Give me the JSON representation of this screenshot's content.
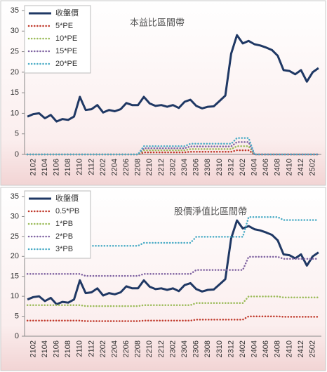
{
  "chart_data": [
    {
      "type": "line",
      "title": "本益比區間帶",
      "categories": [
        null,
        "2102",
        null,
        "2104",
        null,
        "2106",
        null,
        "2108",
        null,
        "2110",
        null,
        "2112",
        null,
        "2202",
        null,
        "2204",
        null,
        "2206",
        null,
        "2208",
        null,
        "2210",
        null,
        "2212",
        null,
        "2302",
        null,
        "2304",
        null,
        "2306",
        null,
        "2308",
        null,
        "2310",
        null,
        "2312",
        null,
        "2402",
        null,
        "2404",
        null,
        "2406",
        null,
        "2408",
        null,
        "2410",
        null,
        "2412",
        null,
        "2502",
        null
      ],
      "ylim": [
        0,
        35
      ],
      "yticks": [
        0,
        5,
        10,
        15,
        20,
        25,
        30,
        35
      ],
      "legend": "upper-left",
      "series": [
        {
          "name": "收盤價",
          "color": "#1f3864",
          "line_style": "solid",
          "values": [
            9.2,
            9.8,
            10,
            8.8,
            9.6,
            8.0,
            8.6,
            8.4,
            9.2,
            14.0,
            10.8,
            11.0,
            12.0,
            10.2,
            10.8,
            10.5,
            11.0,
            12.5,
            12.0,
            12.0,
            14.0,
            12.4,
            11.8,
            12.0,
            11.6,
            12.0,
            11.3,
            12.8,
            13.3,
            11.8,
            11.2,
            11.6,
            11.7,
            13.0,
            14.3,
            24.5,
            29.0,
            27.0,
            27.6,
            26.8,
            26.5,
            26.0,
            25.4,
            24.0,
            20.5,
            20.3,
            19.5,
            20.5,
            17.7,
            20.0,
            21.0
          ]
        },
        {
          "name": "5*PE",
          "color": "#c0392b",
          "line_style": "dotted",
          "values": [
            0,
            0,
            0,
            0,
            0,
            0,
            0,
            0,
            0,
            0,
            0,
            0,
            0,
            0,
            0,
            0,
            0,
            0,
            0,
            0,
            0.5,
            0.5,
            0.5,
            0.5,
            0.5,
            0.5,
            0.5,
            0.5,
            0.65,
            0.65,
            0.65,
            0.65,
            0.65,
            0.65,
            0.65,
            0.65,
            1,
            1,
            1,
            0,
            0,
            0,
            0,
            0,
            0,
            0,
            0,
            0,
            0,
            0,
            0
          ]
        },
        {
          "name": "10*PE",
          "color": "#9bbb59",
          "line_style": "dotted",
          "values": [
            0,
            0,
            0,
            0,
            0,
            0,
            0,
            0,
            0,
            0,
            0,
            0,
            0,
            0,
            0,
            0,
            0,
            0,
            0,
            0,
            1,
            1,
            1,
            1,
            1,
            1,
            1,
            1,
            1.3,
            1.3,
            1.3,
            1.3,
            1.3,
            1.3,
            1.3,
            1.3,
            2,
            2,
            2,
            0,
            0,
            0,
            0,
            0,
            0,
            0,
            0,
            0,
            0,
            0,
            0
          ]
        },
        {
          "name": "15*PE",
          "color": "#8064a2",
          "line_style": "dotted",
          "values": [
            0,
            0,
            0,
            0,
            0,
            0,
            0,
            0,
            0,
            0,
            0,
            0,
            0,
            0,
            0,
            0,
            0,
            0,
            0,
            0,
            1.5,
            1.5,
            1.5,
            1.5,
            1.5,
            1.5,
            1.5,
            1.5,
            1.95,
            1.95,
            1.95,
            1.95,
            1.95,
            1.95,
            1.95,
            1.95,
            3,
            3,
            3,
            0,
            0,
            0,
            0,
            0,
            0,
            0,
            0,
            0,
            0,
            0,
            0
          ]
        },
        {
          "name": "20*PE",
          "color": "#4bacc6",
          "line_style": "dotted",
          "values": [
            0,
            0,
            0,
            0,
            0,
            0,
            0,
            0,
            0,
            0,
            0,
            0,
            0,
            0,
            0,
            0,
            0,
            0,
            0,
            0,
            2,
            2,
            2,
            2,
            2,
            2,
            2,
            2,
            2.6,
            2.6,
            2.6,
            2.6,
            2.6,
            2.6,
            2.6,
            2.6,
            4,
            4,
            4,
            0,
            0,
            0,
            0,
            0,
            0,
            0,
            0,
            0,
            0,
            0,
            0
          ]
        }
      ]
    },
    {
      "type": "line",
      "title": "股價淨值比區間帶",
      "categories": [
        null,
        "2102",
        null,
        "2104",
        null,
        "2106",
        null,
        "2108",
        null,
        "2110",
        null,
        "2112",
        null,
        "2202",
        null,
        "2204",
        null,
        "2206",
        null,
        "2208",
        null,
        "2210",
        null,
        "2212",
        null,
        "2302",
        null,
        "2304",
        null,
        "2306",
        null,
        "2308",
        null,
        "2310",
        null,
        "2312",
        null,
        "2402",
        null,
        "2404",
        null,
        "2406",
        null,
        "2408",
        null,
        "2410",
        null,
        "2412",
        null,
        "2502",
        null
      ],
      "ylim": [
        0,
        35
      ],
      "yticks": [
        0,
        5,
        10,
        15,
        20,
        25,
        30,
        35
      ],
      "legend": "upper-left",
      "series": [
        {
          "name": "收盤價",
          "color": "#1f3864",
          "line_style": "solid",
          "values": [
            9.2,
            9.8,
            10,
            8.8,
            9.6,
            8.0,
            8.6,
            8.4,
            9.2,
            14.0,
            10.8,
            11.0,
            12.0,
            10.2,
            10.8,
            10.5,
            11.0,
            12.5,
            12.0,
            12.0,
            14.0,
            12.4,
            11.8,
            12.0,
            11.6,
            12.0,
            11.3,
            12.8,
            13.3,
            11.8,
            11.2,
            11.6,
            11.7,
            13.0,
            14.3,
            24.5,
            29.0,
            27.0,
            27.6,
            26.8,
            26.5,
            26.0,
            25.4,
            24.0,
            20.5,
            20.3,
            19.5,
            20.5,
            17.7,
            20.0,
            21.0
          ]
        },
        {
          "name": "0.5*PB",
          "color": "#c0392b",
          "line_style": "dotted",
          "values": [
            3.9,
            3.9,
            3.9,
            3.9,
            3.9,
            3.9,
            3.9,
            3.9,
            3.9,
            3.9,
            3.78,
            3.78,
            3.78,
            3.78,
            3.78,
            3.78,
            3.78,
            3.78,
            3.78,
            3.78,
            3.9,
            3.9,
            3.9,
            3.9,
            3.9,
            3.9,
            3.9,
            3.9,
            3.9,
            4.15,
            4.15,
            4.15,
            4.15,
            4.15,
            4.15,
            4.15,
            4.15,
            4.15,
            4.98,
            4.98,
            4.98,
            4.98,
            4.98,
            4.98,
            4.85,
            4.85,
            4.85,
            4.85,
            4.85,
            4.85,
            4.85
          ]
        },
        {
          "name": "1*PB",
          "color": "#9bbb59",
          "line_style": "dotted",
          "values": [
            7.8,
            7.8,
            7.8,
            7.8,
            7.8,
            7.8,
            7.8,
            7.8,
            7.8,
            7.8,
            7.55,
            7.55,
            7.55,
            7.55,
            7.55,
            7.55,
            7.55,
            7.55,
            7.55,
            7.55,
            7.8,
            7.8,
            7.8,
            7.8,
            7.8,
            7.8,
            7.8,
            7.8,
            7.8,
            8.3,
            8.3,
            8.3,
            8.3,
            8.3,
            8.3,
            8.3,
            8.3,
            8.3,
            9.95,
            9.95,
            9.95,
            9.95,
            9.95,
            9.95,
            9.7,
            9.7,
            9.7,
            9.7,
            9.7,
            9.7,
            9.7
          ]
        },
        {
          "name": "2*PB",
          "color": "#8064a2",
          "line_style": "dotted",
          "values": [
            15.6,
            15.6,
            15.6,
            15.6,
            15.6,
            15.6,
            15.6,
            15.6,
            15.6,
            15.6,
            15.1,
            15.1,
            15.1,
            15.1,
            15.1,
            15.1,
            15.1,
            15.1,
            15.1,
            15.1,
            15.6,
            15.6,
            15.6,
            15.6,
            15.6,
            15.6,
            15.6,
            15.6,
            15.6,
            16.6,
            16.6,
            16.6,
            16.6,
            16.6,
            16.6,
            16.6,
            16.6,
            16.6,
            19.9,
            19.9,
            19.9,
            19.9,
            19.9,
            19.9,
            19.4,
            19.4,
            19.4,
            19.4,
            19.4,
            19.4,
            19.4
          ]
        },
        {
          "name": "3*PB",
          "color": "#4bacc6",
          "line_style": "dotted",
          "values": [
            23.4,
            23.4,
            23.4,
            23.4,
            23.4,
            23.4,
            23.4,
            23.4,
            23.4,
            23.4,
            22.65,
            22.65,
            22.65,
            22.65,
            22.65,
            22.65,
            22.65,
            22.65,
            22.65,
            22.65,
            23.4,
            23.4,
            23.4,
            23.4,
            23.4,
            23.4,
            23.4,
            23.4,
            23.4,
            24.9,
            24.9,
            24.9,
            24.9,
            24.9,
            24.9,
            24.9,
            24.9,
            24.9,
            29.85,
            29.85,
            29.85,
            29.85,
            29.85,
            29.85,
            29.1,
            29.1,
            29.1,
            29.1,
            29.1,
            29.1,
            29.1
          ]
        }
      ]
    }
  ]
}
